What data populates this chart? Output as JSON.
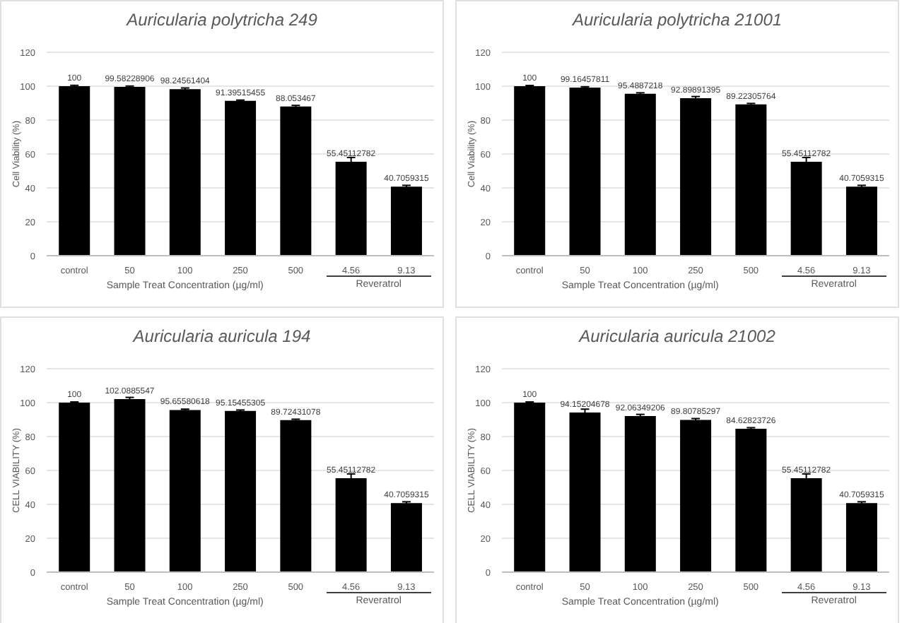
{
  "chart_data": [
    {
      "type": "bar",
      "title": "Auricularia polytricha 249",
      "xlabel": "Sample Treat Concentration (µg/ml)",
      "ylabel": "Cell Viability (%)",
      "categories": [
        "control",
        "50",
        "100",
        "250",
        "500",
        "4.56",
        "9.13"
      ],
      "values": [
        100,
        99.58228906,
        98.24561404,
        91.39515455,
        88.053467,
        55.45112782,
        40.7059315
      ],
      "errors": [
        0.5,
        0.5,
        0.7,
        0.4,
        0.6,
        2.5,
        0.8
      ],
      "color": "#000000",
      "ylim": [
        0,
        120
      ],
      "yticks": [
        0,
        20,
        40,
        60,
        80,
        100,
        120
      ],
      "grid": "y",
      "data_labels": true,
      "annotations": [
        "Reveratrol"
      ]
    },
    {
      "type": "bar",
      "title": "Auricularia polytricha 21001",
      "xlabel": "Sample Treat Concentration (µg/ml)",
      "ylabel": "Cell Viability (%)",
      "categories": [
        "control",
        "50",
        "100",
        "250",
        "500",
        "4.56",
        "9.13"
      ],
      "values": [
        100,
        99.16457811,
        95.4887218,
        92.89891395,
        89.22305764,
        55.45112782,
        40.7059315
      ],
      "errors": [
        0.4,
        0.5,
        0.6,
        1,
        0.6,
        2.5,
        0.8
      ],
      "color": "#000000",
      "ylim": [
        0,
        120
      ],
      "yticks": [
        0,
        20,
        40,
        60,
        80,
        100,
        120
      ],
      "grid": "y",
      "data_labels": true,
      "annotations": [
        "Reveratrol"
      ]
    },
    {
      "type": "bar",
      "title": "Auricularia auricula 194",
      "xlabel": "Sample Treat Concentration (µg/ml)",
      "ylabel": "CELL VIABILITY (%)",
      "categories": [
        "control",
        "50",
        "100",
        "250",
        "500",
        "4.56",
        "9.13"
      ],
      "values": [
        100,
        102.0885547,
        95.65580618,
        95.15455305,
        89.72431078,
        55.45112782,
        40.7059315
      ],
      "errors": [
        0.4,
        1,
        0.5,
        0.5,
        0.5,
        2.5,
        0.8
      ],
      "color": "#000000",
      "ylim": [
        0,
        120
      ],
      "yticks": [
        0,
        20,
        40,
        60,
        80,
        100,
        120
      ],
      "grid": "y",
      "data_labels": true,
      "annotations": [
        "Reveratrol"
      ]
    },
    {
      "type": "bar",
      "title": "Auricularia auricula 21002",
      "xlabel": "Sample Treat Concentration (µg/ml)",
      "ylabel": "CELL VIABILITY (%)",
      "categories": [
        "control",
        "50",
        "100",
        "250",
        "500",
        "4.56",
        "9.13"
      ],
      "values": [
        100,
        94.15204678,
        92.06349206,
        89.80785297,
        84.62823726,
        55.45112782,
        40.7059315
      ],
      "errors": [
        0.4,
        2,
        1,
        0.8,
        0.6,
        2.5,
        0.8
      ],
      "color": "#000000",
      "ylim": [
        0,
        120
      ],
      "yticks": [
        0,
        20,
        40,
        60,
        80,
        100,
        120
      ],
      "grid": "y",
      "data_labels": true,
      "annotations": [
        "Reveratrol"
      ]
    }
  ]
}
